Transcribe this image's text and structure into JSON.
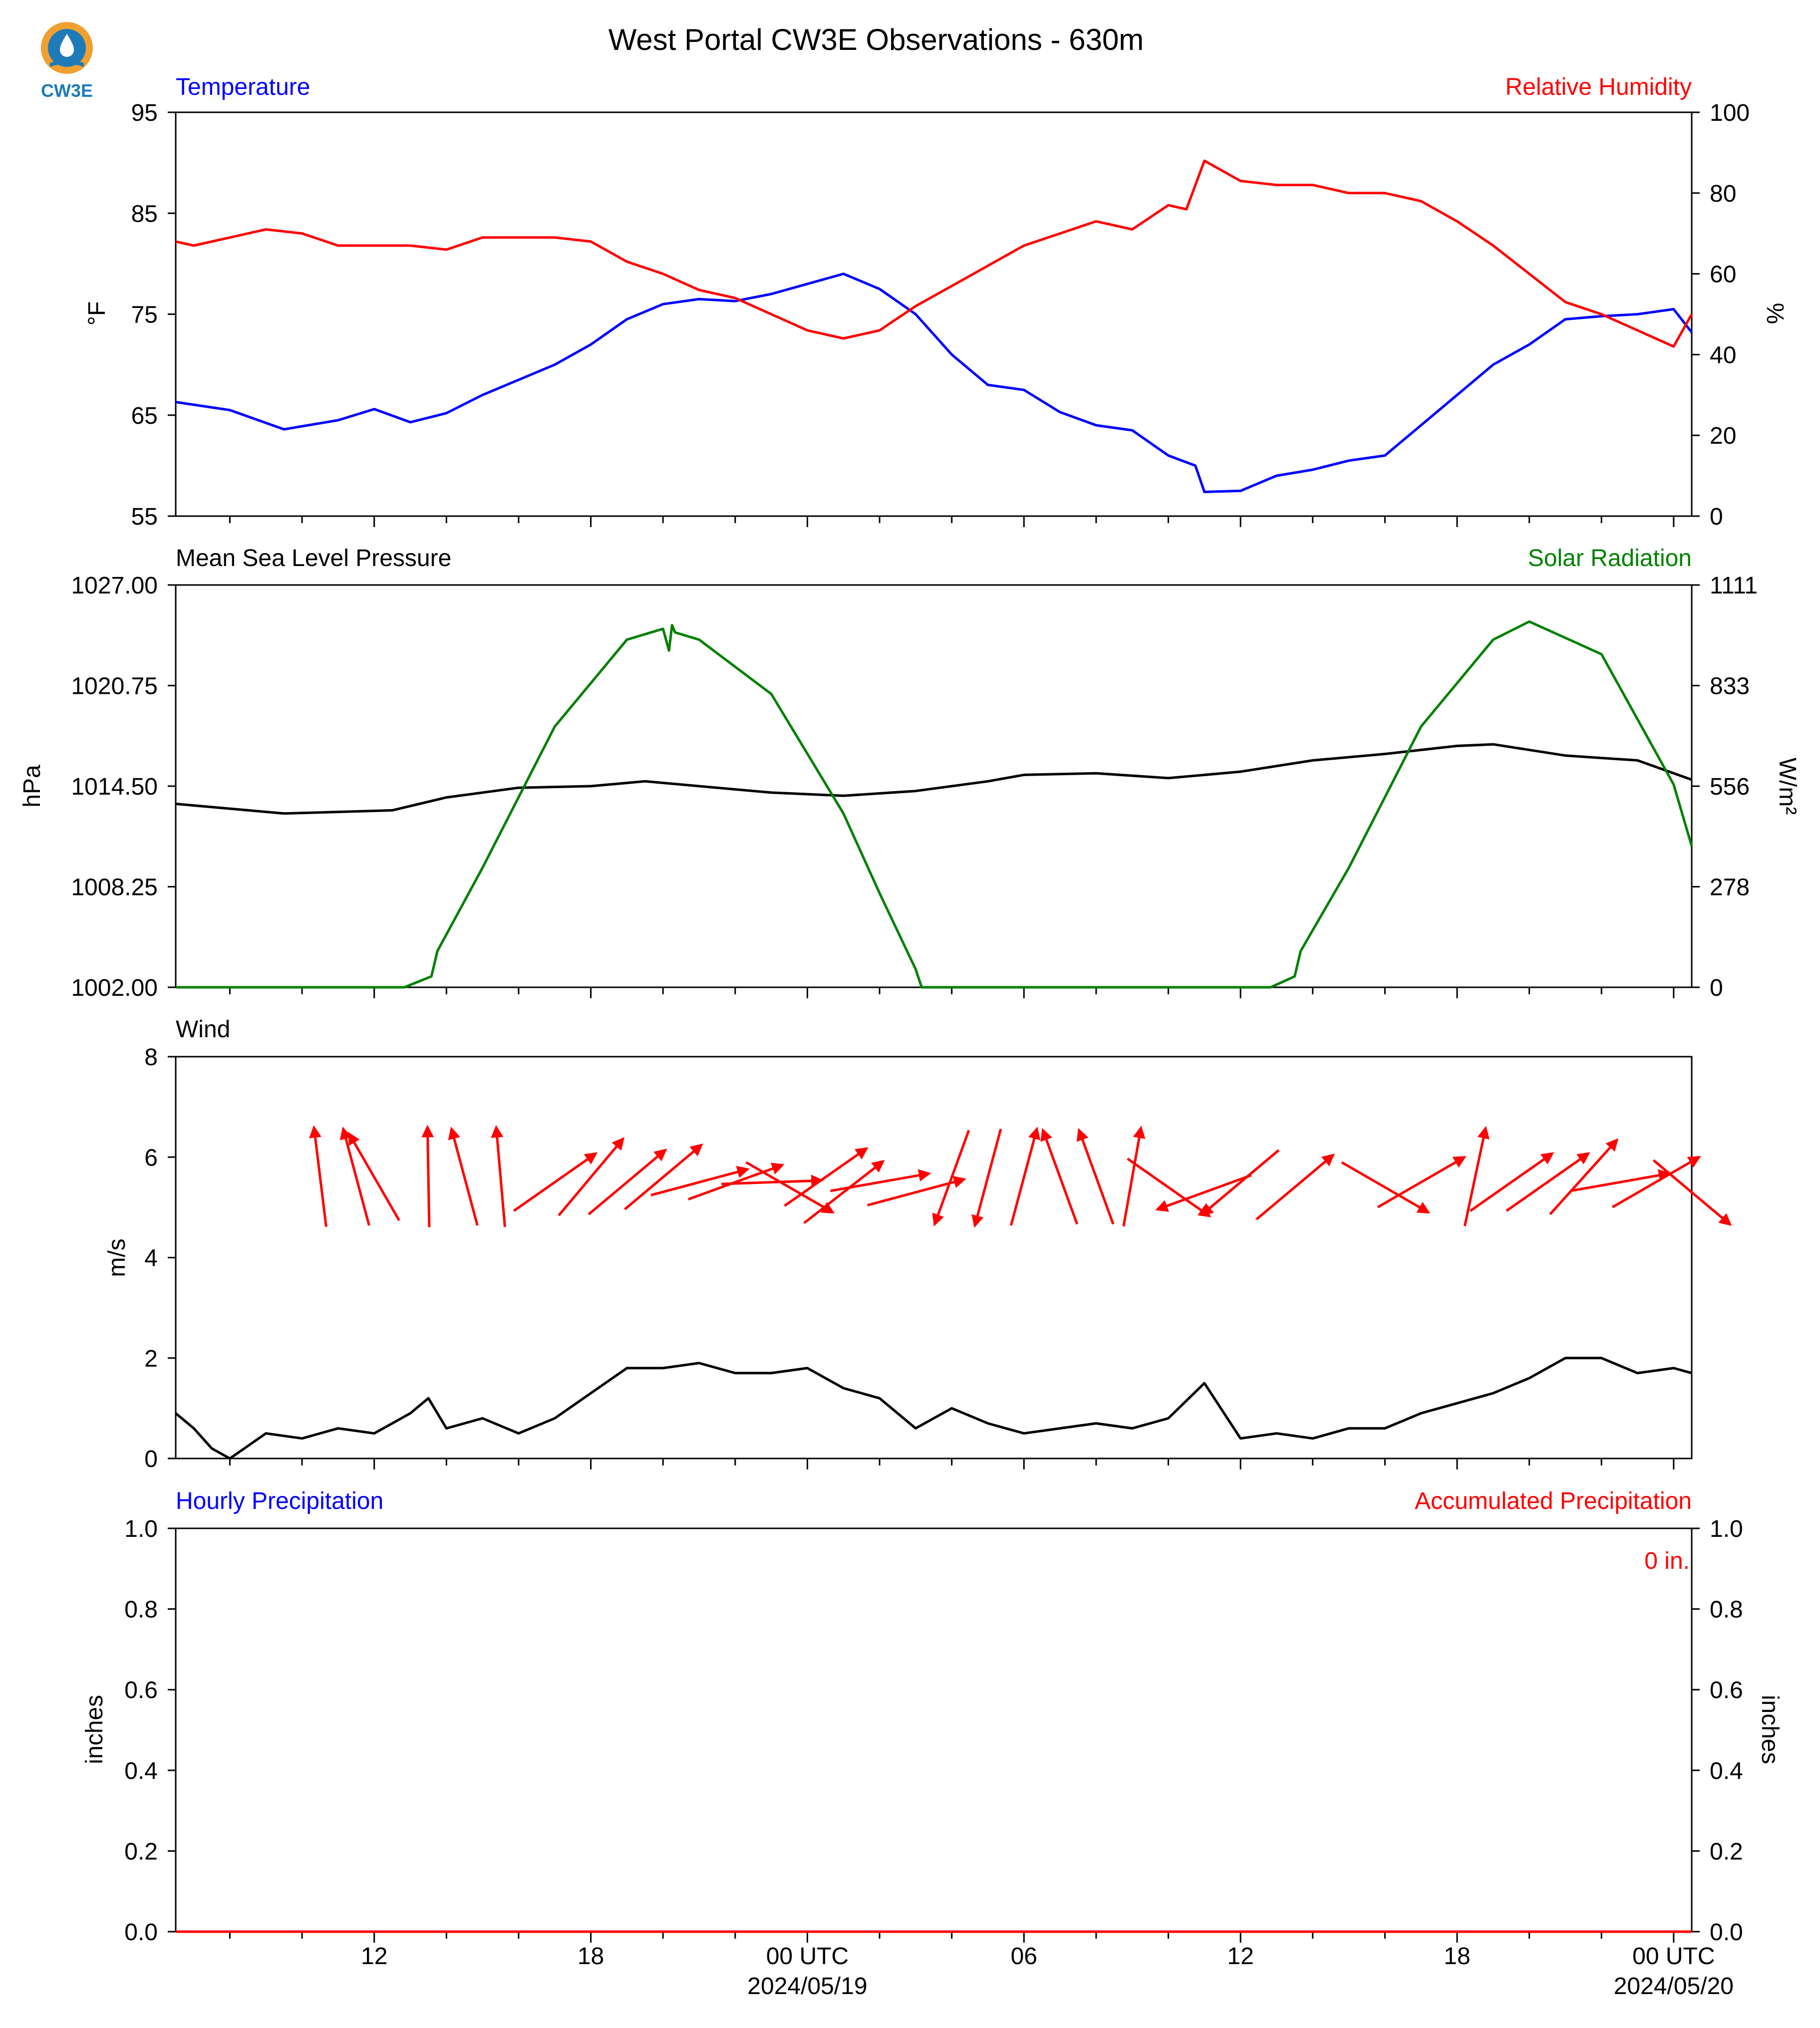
{
  "title": "West Portal CW3E Observations - 630m",
  "logo": {
    "text": "CW3E",
    "icon": "water-drop-sun-icon",
    "colors": {
      "orange": "#F0A030",
      "blue": "#1E7BB8"
    }
  },
  "colors": {
    "temperature": "#0000FF",
    "humidity": "#FF0000",
    "pressure": "#000000",
    "solar": "#008000",
    "wind_arrows": "#FF0000",
    "precip_hourly": "#0000FF",
    "precip_accum": "#FF0000"
  },
  "x_axis": {
    "start": "2024-05-18T06:30Z",
    "end": "2024-05-20T00:30Z",
    "ticks": [
      {
        "label": "12",
        "date": "",
        "t": "2024-05-18T12:00Z"
      },
      {
        "label": "18",
        "date": "",
        "t": "2024-05-18T18:00Z"
      },
      {
        "label": "00 UTC",
        "date": "2024/05/19",
        "t": "2024-05-19T00:00Z"
      },
      {
        "label": "06",
        "date": "",
        "t": "2024-05-19T06:00Z"
      },
      {
        "label": "12",
        "date": "",
        "t": "2024-05-19T12:00Z"
      },
      {
        "label": "18",
        "date": "",
        "t": "2024-05-19T18:00Z"
      },
      {
        "label": "00 UTC",
        "date": "2024/05/20",
        "t": "2024-05-20T00:00Z"
      }
    ]
  },
  "panels": {
    "temp": {
      "left_title": "Temperature",
      "right_title": "Relative Humidity",
      "ylabel_left": "°F",
      "ylabel_right": "%",
      "left_ticks": [
        "95",
        "85",
        "75",
        "65",
        "55"
      ],
      "right_ticks": [
        "100",
        "80",
        "60",
        "40",
        "20",
        "0"
      ]
    },
    "pressure": {
      "left_title": "Mean Sea Level Pressure",
      "right_title": "Solar Radiation",
      "ylabel_left": "hPa",
      "ylabel_right": "W/m²",
      "left_ticks": [
        "1027.00",
        "1020.75",
        "1014.50",
        "1008.25",
        "1002.00"
      ],
      "right_ticks": [
        "1111",
        "833",
        "556",
        "278",
        "0"
      ]
    },
    "wind": {
      "left_title": "Wind",
      "ylabel_left": "m/s",
      "left_ticks": [
        "8",
        "6",
        "4",
        "2",
        "0"
      ]
    },
    "precip": {
      "left_title": "Hourly Precipitation",
      "right_title": "Accumulated Precipitation",
      "ylabel_left": "inches",
      "ylabel_right": "inches",
      "left_ticks": [
        "1.0",
        "0.8",
        "0.6",
        "0.4",
        "0.2",
        "0.0"
      ],
      "right_ticks": [
        "1.0",
        "0.8",
        "0.6",
        "0.4",
        "0.2",
        "0.0"
      ],
      "total_label": "0 in."
    }
  },
  "chart_data": [
    {
      "type": "line",
      "title": "Temperature / Relative Humidity",
      "ylabel": "°F",
      "ylim": [
        55,
        95
      ],
      "y2label": "%",
      "y2lim": [
        0,
        100
      ],
      "series": [
        {
          "name": "Temperature",
          "axis": "left",
          "color": "#0000FF",
          "x": [
            "2024-05-18T06:30Z",
            "2024-05-18T08:00Z",
            "2024-05-18T09:30Z",
            "2024-05-18T11:00Z",
            "2024-05-18T12:00Z",
            "2024-05-18T13:00Z",
            "2024-05-18T14:00Z",
            "2024-05-18T15:00Z",
            "2024-05-18T16:00Z",
            "2024-05-18T17:00Z",
            "2024-05-18T18:00Z",
            "2024-05-18T19:00Z",
            "2024-05-18T20:00Z",
            "2024-05-18T21:00Z",
            "2024-05-18T22:00Z",
            "2024-05-18T23:00Z",
            "2024-05-19T00:00Z",
            "2024-05-19T01:00Z",
            "2024-05-19T02:00Z",
            "2024-05-19T03:00Z",
            "2024-05-19T04:00Z",
            "2024-05-19T05:00Z",
            "2024-05-19T06:00Z",
            "2024-05-19T07:00Z",
            "2024-05-19T08:00Z",
            "2024-05-19T09:00Z",
            "2024-05-19T10:00Z",
            "2024-05-19T10:45Z",
            "2024-05-19T11:00Z",
            "2024-05-19T12:00Z",
            "2024-05-19T13:00Z",
            "2024-05-19T14:00Z",
            "2024-05-19T15:00Z",
            "2024-05-19T16:00Z",
            "2024-05-19T17:00Z",
            "2024-05-19T18:00Z",
            "2024-05-19T19:00Z",
            "2024-05-19T20:00Z",
            "2024-05-19T21:00Z",
            "2024-05-19T22:00Z",
            "2024-05-19T23:00Z",
            "2024-05-20T00:00Z",
            "2024-05-20T00:30Z"
          ],
          "y": [
            66.3,
            65.5,
            63.6,
            64.5,
            65.6,
            64.3,
            65.2,
            67,
            68.5,
            70,
            72,
            74.5,
            76,
            76.5,
            76.3,
            77,
            78,
            79,
            77.5,
            75,
            71,
            68,
            67.5,
            65.3,
            64,
            63.5,
            61,
            60,
            57.4,
            57.5,
            59,
            59.6,
            60.5,
            61,
            64,
            67,
            70,
            72,
            74.5,
            74.8,
            75,
            75.5,
            73.2
          ]
        },
        {
          "name": "Relative Humidity",
          "axis": "right",
          "color": "#FF0000",
          "x": [
            "2024-05-18T06:30Z",
            "2024-05-18T07:00Z",
            "2024-05-18T08:00Z",
            "2024-05-18T09:00Z",
            "2024-05-18T10:00Z",
            "2024-05-18T11:00Z",
            "2024-05-18T12:00Z",
            "2024-05-18T13:00Z",
            "2024-05-18T14:00Z",
            "2024-05-18T15:00Z",
            "2024-05-18T16:00Z",
            "2024-05-18T17:00Z",
            "2024-05-18T18:00Z",
            "2024-05-18T19:00Z",
            "2024-05-18T20:00Z",
            "2024-05-18T21:00Z",
            "2024-05-18T22:00Z",
            "2024-05-18T23:00Z",
            "2024-05-19T00:00Z",
            "2024-05-19T01:00Z",
            "2024-05-19T02:00Z",
            "2024-05-19T03:00Z",
            "2024-05-19T04:00Z",
            "2024-05-19T05:00Z",
            "2024-05-19T06:00Z",
            "2024-05-19T07:00Z",
            "2024-05-19T08:00Z",
            "2024-05-19T09:00Z",
            "2024-05-19T10:00Z",
            "2024-05-19T10:30Z",
            "2024-05-19T11:00Z",
            "2024-05-19T12:00Z",
            "2024-05-19T13:00Z",
            "2024-05-19T14:00Z",
            "2024-05-19T15:00Z",
            "2024-05-19T16:00Z",
            "2024-05-19T17:00Z",
            "2024-05-19T18:00Z",
            "2024-05-19T19:00Z",
            "2024-05-19T20:00Z",
            "2024-05-19T21:00Z",
            "2024-05-19T22:00Z",
            "2024-05-19T23:00Z",
            "2024-05-20T00:00Z",
            "2024-05-20T00:30Z"
          ],
          "y": [
            68,
            67,
            69,
            71,
            70,
            67,
            67,
            67,
            66,
            69,
            69,
            69,
            68,
            63,
            60,
            56,
            54,
            50,
            46,
            44,
            46,
            52,
            57,
            62,
            67,
            70,
            73,
            71,
            77,
            76,
            88,
            83,
            82,
            82,
            80,
            80,
            78,
            73,
            67,
            60,
            53,
            50,
            46,
            42,
            50
          ]
        }
      ]
    },
    {
      "type": "line",
      "title": "Mean Sea Level Pressure / Solar Radiation",
      "ylabel": "hPa",
      "ylim": [
        1002.0,
        1027.0
      ],
      "y2label": "W/m²",
      "y2lim": [
        0,
        1111
      ],
      "series": [
        {
          "name": "Mean Sea Level Pressure",
          "axis": "left",
          "color": "#000000",
          "x": [
            "2024-05-18T06:30Z",
            "2024-05-18T08:00Z",
            "2024-05-18T09:30Z",
            "2024-05-18T11:00Z",
            "2024-05-18T12:30Z",
            "2024-05-18T14:00Z",
            "2024-05-18T16:00Z",
            "2024-05-18T18:00Z",
            "2024-05-18T19:30Z",
            "2024-05-18T21:00Z",
            "2024-05-18T23:00Z",
            "2024-05-19T01:00Z",
            "2024-05-19T03:00Z",
            "2024-05-19T05:00Z",
            "2024-05-19T06:00Z",
            "2024-05-19T08:00Z",
            "2024-05-19T10:00Z",
            "2024-05-19T12:00Z",
            "2024-05-19T14:00Z",
            "2024-05-19T16:00Z",
            "2024-05-19T18:00Z",
            "2024-05-19T19:00Z",
            "2024-05-19T21:00Z",
            "2024-05-19T23:00Z",
            "2024-05-20T00:30Z"
          ],
          "y": [
            1013.4,
            1013.1,
            1012.8,
            1012.9,
            1013.0,
            1013.8,
            1014.4,
            1014.5,
            1014.8,
            1014.5,
            1014.1,
            1013.9,
            1014.2,
            1014.8,
            1015.2,
            1015.3,
            1015.0,
            1015.4,
            1016.1,
            1016.5,
            1017.0,
            1017.1,
            1016.4,
            1016.1,
            1014.9
          ]
        },
        {
          "name": "Solar Radiation",
          "axis": "right",
          "color": "#008000",
          "x": [
            "2024-05-18T06:30Z",
            "2024-05-18T12:50Z",
            "2024-05-18T13:35Z",
            "2024-05-18T13:45Z",
            "2024-05-18T15:00Z",
            "2024-05-18T17:00Z",
            "2024-05-18T19:00Z",
            "2024-05-18T20:00Z",
            "2024-05-18T20:10Z",
            "2024-05-18T20:15Z",
            "2024-05-18T20:20Z",
            "2024-05-18T21:00Z",
            "2024-05-18T23:00Z",
            "2024-05-19T01:00Z",
            "2024-05-19T02:00Z",
            "2024-05-19T03:00Z",
            "2024-05-19T03:10Z",
            "2024-05-19T12:50Z",
            "2024-05-19T13:30Z",
            "2024-05-19T13:40Z",
            "2024-05-19T15:00Z",
            "2024-05-19T17:00Z",
            "2024-05-19T19:00Z",
            "2024-05-19T20:00Z",
            "2024-05-19T22:00Z",
            "2024-05-20T00:00Z",
            "2024-05-20T00:30Z"
          ],
          "y": [
            0,
            0,
            30,
            100,
            330,
            720,
            960,
            990,
            930,
            1000,
            980,
            960,
            810,
            480,
            260,
            50,
            0,
            0,
            30,
            100,
            330,
            720,
            960,
            1010,
            920,
            560,
            390
          ]
        }
      ]
    },
    {
      "type": "line",
      "title": "Wind",
      "ylabel": "m/s",
      "ylim": [
        0,
        8
      ],
      "series": [
        {
          "name": "Wind",
          "color": "#000000",
          "x": [
            "2024-05-18T06:30Z",
            "2024-05-18T07:00Z",
            "2024-05-18T07:30Z",
            "2024-05-18T08:00Z",
            "2024-05-18T09:00Z",
            "2024-05-18T10:00Z",
            "2024-05-18T11:00Z",
            "2024-05-18T12:00Z",
            "2024-05-18T13:00Z",
            "2024-05-18T13:30Z",
            "2024-05-18T14:00Z",
            "2024-05-18T15:00Z",
            "2024-05-18T16:00Z",
            "2024-05-18T17:00Z",
            "2024-05-18T18:00Z",
            "2024-05-18T19:00Z",
            "2024-05-18T20:00Z",
            "2024-05-18T21:00Z",
            "2024-05-18T22:00Z",
            "2024-05-18T23:00Z",
            "2024-05-19T00:00Z",
            "2024-05-19T01:00Z",
            "2024-05-19T02:00Z",
            "2024-05-19T03:00Z",
            "2024-05-19T04:00Z",
            "2024-05-19T05:00Z",
            "2024-05-19T06:00Z",
            "2024-05-19T07:00Z",
            "2024-05-19T08:00Z",
            "2024-05-19T09:00Z",
            "2024-05-19T10:00Z",
            "2024-05-19T11:00Z",
            "2024-05-19T12:00Z",
            "2024-05-19T13:00Z",
            "2024-05-19T14:00Z",
            "2024-05-19T15:00Z",
            "2024-05-19T16:00Z",
            "2024-05-19T17:00Z",
            "2024-05-19T18:00Z",
            "2024-05-19T19:00Z",
            "2024-05-19T20:00Z",
            "2024-05-19T21:00Z",
            "2024-05-19T22:00Z",
            "2024-05-19T23:00Z",
            "2024-05-20T00:00Z",
            "2024-05-20T00:30Z"
          ],
          "y": [
            0.9,
            0.6,
            0.2,
            0,
            0.5,
            0.4,
            0.6,
            0.5,
            0.9,
            1.2,
            0.6,
            0.8,
            0.5,
            0.8,
            1.3,
            1.8,
            1.8,
            1.9,
            1.7,
            1.7,
            1.8,
            1.4,
            1.2,
            0.6,
            1.0,
            0.7,
            0.5,
            0.6,
            0.7,
            0.6,
            0.8,
            1.5,
            0.4,
            0.5,
            0.4,
            0.6,
            0.6,
            0.9,
            1.1,
            1.3,
            1.6,
            2.0,
            2.0,
            1.7,
            1.8,
            1.7
          ]
        },
        {
          "name": "Wind direction",
          "color": "#FF0000",
          "x": [
            "2024-05-18T10:30Z",
            "2024-05-18T11:30Z",
            "2024-05-18T12:00Z",
            "2024-05-18T13:30Z",
            "2024-05-18T14:30Z",
            "2024-05-18T15:30Z",
            "2024-05-18T17:00Z",
            "2024-05-18T18:00Z",
            "2024-05-18T19:00Z",
            "2024-05-18T20:00Z",
            "2024-05-18T21:00Z",
            "2024-05-18T22:00Z",
            "2024-05-18T23:00Z",
            "2024-05-18T23:30Z",
            "2024-05-19T00:30Z",
            "2024-05-19T01:00Z",
            "2024-05-19T02:00Z",
            "2024-05-19T03:00Z",
            "2024-05-19T04:00Z",
            "2024-05-19T05:00Z",
            "2024-05-19T06:00Z",
            "2024-05-19T07:00Z",
            "2024-05-19T08:00Z",
            "2024-05-19T09:00Z",
            "2024-05-19T10:00Z",
            "2024-05-19T11:00Z",
            "2024-05-19T12:00Z",
            "2024-05-19T13:30Z",
            "2024-05-19T16:00Z",
            "2024-05-19T17:00Z",
            "2024-05-19T18:30Z",
            "2024-05-19T19:30Z",
            "2024-05-19T20:30Z",
            "2024-05-19T21:30Z",
            "2024-05-19T22:30Z",
            "2024-05-19T23:30Z",
            "2024-05-20T00:30Z"
          ],
          "y": [
            5.6,
            5.6,
            5.6,
            5.6,
            5.6,
            5.6,
            5.5,
            5.6,
            5.5,
            5.6,
            5.5,
            5.5,
            5.5,
            5.4,
            5.6,
            5.3,
            5.5,
            5.3,
            5.6,
            5.6,
            5.6,
            5.6,
            5.6,
            5.6,
            5.4,
            5.3,
            5.5,
            5.4,
            5.4,
            5.5,
            5.6,
            5.5,
            5.5,
            5.6,
            5.5,
            5.5,
            5.3
          ],
          "direction_to_deg": [
            353,
            345,
            330,
            359,
            345,
            355,
            55,
            40,
            50,
            50,
            75,
            70,
            88,
            120,
            55,
            52,
            80,
            75,
            200,
            195,
            15,
            340,
            340,
            10,
            125,
            250,
            230,
            50,
            120,
            60,
            12,
            55,
            55,
            42,
            80,
            60,
            130
          ]
        }
      ]
    },
    {
      "type": "line",
      "title": "Hourly Precipitation / Accumulated Precipitation",
      "ylabel": "inches",
      "ylim": [
        0.0,
        1.0
      ],
      "y2label": "inches",
      "y2lim": [
        0.0,
        1.0
      ],
      "series": [
        {
          "name": "Hourly Precipitation",
          "axis": "left",
          "color": "#0000FF",
          "x": [
            "2024-05-18T06:30Z",
            "2024-05-20T00:30Z"
          ],
          "y": [
            0,
            0
          ]
        },
        {
          "name": "Accumulated Precipitation",
          "axis": "right",
          "color": "#FF0000",
          "x": [
            "2024-05-18T06:30Z",
            "2024-05-20T00:30Z"
          ],
          "y": [
            0,
            0
          ]
        }
      ]
    }
  ]
}
